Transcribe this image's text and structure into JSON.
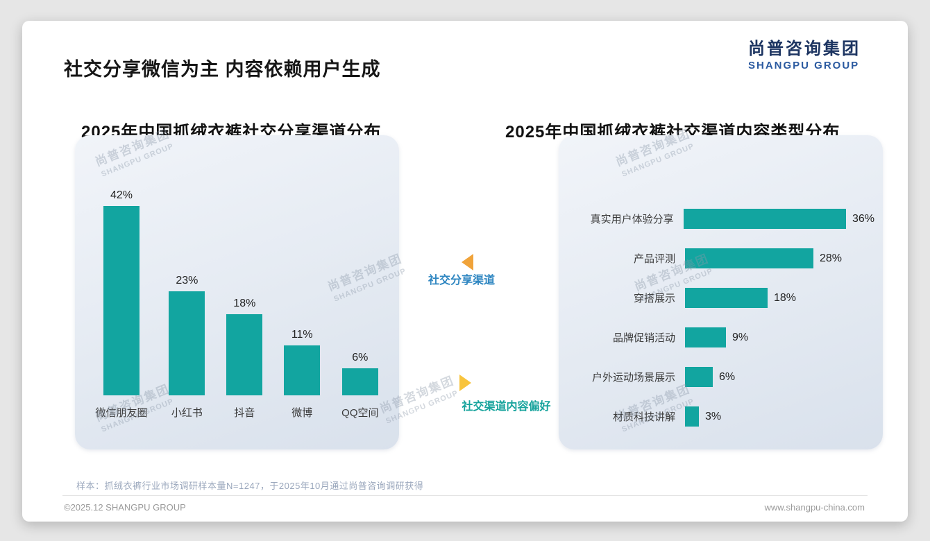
{
  "slide": {
    "title": "社交分享微信为主 内容依赖用户生成",
    "sample_note": "样本：抓绒衣裤行业市场调研样本量N=1247，于2025年10月通过尚普咨询调研获得",
    "footer_left": "©2025.12 SHANGPU GROUP",
    "footer_right": "www.shangpu-china.com"
  },
  "logo": {
    "cn": "尚普咨询集团",
    "en": "SHANGPU GROUP"
  },
  "watermark": {
    "cn": "尚普咨询集团",
    "en": "SHANGPU GROUP"
  },
  "annotations": {
    "share_channel_label": "社交分享渠道",
    "content_pref_label": "社交渠道内容偏好"
  },
  "colors": {
    "bar_teal": "#12a5a0",
    "triangle_orange": "#f0a33a",
    "triangle_yellow": "#f8c43d",
    "logo_navy": "#1c3461",
    "logo_blue": "#2b5aa0",
    "annotation_blue": "#2e86c1",
    "annotation_teal": "#16a39c"
  },
  "chart_data": [
    {
      "type": "bar",
      "orientation": "vertical",
      "title": "2025年中国抓绒衣裤社交分享渠道分布",
      "categories": [
        "微信朋友圈",
        "小红书",
        "抖音",
        "微博",
        "QQ空间"
      ],
      "values": [
        42,
        23,
        18,
        11,
        6
      ],
      "unit": "%",
      "ylim": [
        0,
        45
      ],
      "grid": false,
      "legend": "none"
    },
    {
      "type": "bar",
      "orientation": "horizontal",
      "title": "2025年中国抓绒衣裤社交渠道内容类型分布",
      "categories": [
        "真实用户体验分享",
        "产品评测",
        "穿搭展示",
        "品牌促销活动",
        "户外运动场景展示",
        "材质科技讲解"
      ],
      "values": [
        36,
        28,
        18,
        9,
        6,
        3
      ],
      "unit": "%",
      "xlim": [
        0,
        40
      ],
      "grid": false,
      "legend": "none"
    }
  ]
}
